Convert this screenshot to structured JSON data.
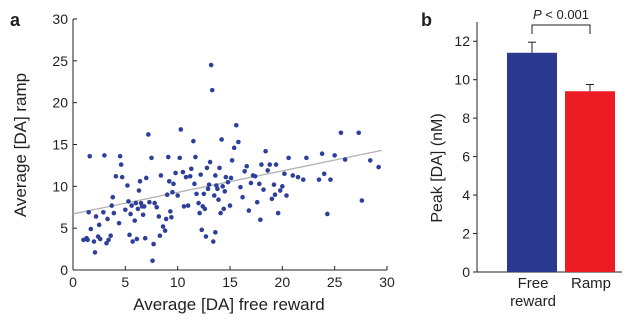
{
  "colors": {
    "scatter": "#2e3f9a",
    "fit_line": "#b3b3b3",
    "bar_free": "#2b3990",
    "bar_ramp": "#ed1c24",
    "axis": "#231f20"
  },
  "chart_data": [
    {
      "panel": "a",
      "type": "scatter",
      "xlabel": "Average [DA] free reward",
      "ylabel": "Average [DA] ramp",
      "xlim": [
        0,
        30
      ],
      "ylim": [
        0,
        30
      ],
      "xticks": [
        0,
        5,
        10,
        15,
        20,
        25,
        30
      ],
      "yticks": [
        0,
        5,
        10,
        15,
        20,
        25,
        30
      ],
      "fit_line": {
        "x": [
          0,
          29.5
        ],
        "y": [
          6.7,
          14.3
        ]
      },
      "points": [
        [
          1.5,
          6.9
        ],
        [
          1.7,
          4.9
        ],
        [
          1.0,
          3.6
        ],
        [
          1.3,
          3.8
        ],
        [
          1.6,
          13.6
        ],
        [
          2.0,
          3.4
        ],
        [
          2.1,
          2.1
        ],
        [
          2.4,
          4.0
        ],
        [
          2.5,
          5.4
        ],
        [
          2.6,
          3.7
        ],
        [
          2.9,
          6.9
        ],
        [
          3.0,
          13.7
        ],
        [
          3.2,
          3.2
        ],
        [
          3.3,
          6.1
        ],
        [
          3.4,
          3.6
        ],
        [
          3.6,
          4.1
        ],
        [
          3.7,
          7.7
        ],
        [
          3.9,
          6.8
        ],
        [
          4.1,
          11.2
        ],
        [
          4.5,
          13.6
        ],
        [
          4.6,
          12.6
        ],
        [
          4.7,
          11.1
        ],
        [
          5.0,
          7.2
        ],
        [
          5.2,
          10.1
        ],
        [
          5.3,
          8.2
        ],
        [
          5.4,
          4.2
        ],
        [
          5.5,
          6.7
        ],
        [
          5.6,
          7.7
        ],
        [
          5.7,
          3.4
        ],
        [
          5.9,
          5.9
        ],
        [
          6.0,
          8.0
        ],
        [
          6.2,
          7.3
        ],
        [
          6.3,
          9.5
        ],
        [
          6.4,
          10.6
        ],
        [
          6.5,
          8.0
        ],
        [
          6.6,
          7.6
        ],
        [
          6.7,
          6.6
        ],
        [
          6.8,
          7.6
        ],
        [
          6.9,
          3.8
        ],
        [
          7.0,
          11.0
        ],
        [
          7.2,
          16.2
        ],
        [
          7.3,
          8.1
        ],
        [
          7.5,
          13.4
        ],
        [
          7.6,
          1.1
        ],
        [
          7.7,
          3.1
        ],
        [
          7.8,
          8.0
        ],
        [
          8.0,
          7.5
        ],
        [
          8.2,
          6.4
        ],
        [
          8.3,
          4.1
        ],
        [
          8.4,
          11.3
        ],
        [
          8.6,
          5.2
        ],
        [
          8.8,
          4.7
        ],
        [
          9.0,
          9.0
        ],
        [
          9.1,
          13.5
        ],
        [
          9.2,
          10.6
        ],
        [
          9.3,
          7.0
        ],
        [
          9.5,
          9.3
        ],
        [
          9.6,
          10.3
        ],
        [
          9.8,
          11.6
        ],
        [
          10.0,
          8.9
        ],
        [
          10.2,
          13.4
        ],
        [
          10.3,
          16.8
        ],
        [
          10.5,
          11.7
        ],
        [
          10.6,
          7.6
        ],
        [
          10.8,
          11.1
        ],
        [
          11.0,
          7.7
        ],
        [
          11.2,
          11.2
        ],
        [
          11.3,
          12.1
        ],
        [
          11.5,
          15.4
        ],
        [
          11.7,
          13.5
        ],
        [
          11.8,
          9.1
        ],
        [
          12.0,
          8.0
        ],
        [
          12.1,
          6.8
        ],
        [
          12.2,
          11.4
        ],
        [
          12.4,
          7.6
        ],
        [
          12.5,
          9.1
        ],
        [
          12.6,
          7.3
        ],
        [
          12.7,
          4.0
        ],
        [
          12.8,
          12.2
        ],
        [
          12.9,
          9.7
        ],
        [
          13.0,
          10.2
        ],
        [
          13.1,
          12.9
        ],
        [
          13.2,
          24.5
        ],
        [
          13.3,
          21.5
        ],
        [
          13.4,
          3.4
        ],
        [
          13.5,
          8.9
        ],
        [
          13.6,
          11.3
        ],
        [
          13.7,
          10.1
        ],
        [
          13.8,
          9.7
        ],
        [
          13.9,
          8.4
        ],
        [
          14.0,
          12.2
        ],
        [
          14.1,
          6.8
        ],
        [
          14.2,
          15.6
        ],
        [
          14.3,
          10.0
        ],
        [
          14.4,
          7.3
        ],
        [
          14.5,
          9.4
        ],
        [
          14.6,
          11.1
        ],
        [
          14.8,
          10.5
        ],
        [
          15.0,
          7.7
        ],
        [
          15.2,
          13.1
        ],
        [
          15.4,
          14.6
        ],
        [
          15.6,
          17.3
        ],
        [
          15.8,
          15.3
        ],
        [
          16.0,
          9.9
        ],
        [
          16.2,
          8.7
        ],
        [
          16.4,
          11.8
        ],
        [
          16.6,
          12.4
        ],
        [
          16.8,
          7.1
        ],
        [
          17.0,
          10.4
        ],
        [
          17.2,
          11.3
        ],
        [
          17.4,
          11.2
        ],
        [
          17.6,
          8.1
        ],
        [
          17.8,
          10.3
        ],
        [
          18.0,
          12.6
        ],
        [
          18.2,
          9.6
        ],
        [
          18.4,
          14.2
        ],
        [
          18.6,
          11.9
        ],
        [
          18.8,
          12.6
        ],
        [
          19.0,
          8.5
        ],
        [
          19.2,
          10.2
        ],
        [
          19.4,
          12.6
        ],
        [
          19.6,
          6.8
        ],
        [
          19.8,
          9.5
        ],
        [
          20.0,
          10.0
        ],
        [
          20.2,
          11.5
        ],
        [
          20.4,
          8.9
        ],
        [
          20.6,
          13.4
        ],
        [
          21.0,
          11.3
        ],
        [
          22.0,
          10.8
        ],
        [
          22.3,
          13.4
        ],
        [
          23.5,
          10.8
        ],
        [
          23.8,
          13.9
        ],
        [
          24.0,
          11.5
        ],
        [
          24.3,
          6.7
        ],
        [
          24.6,
          10.8
        ],
        [
          25.0,
          13.7
        ],
        [
          25.6,
          16.4
        ],
        [
          26.0,
          13.2
        ],
        [
          27.3,
          16.4
        ],
        [
          27.6,
          8.3
        ],
        [
          28.4,
          13.1
        ],
        [
          29.2,
          12.3
        ],
        [
          1.4,
          3.6
        ],
        [
          2.2,
          6.4
        ],
        [
          3.8,
          8.7
        ],
        [
          4.4,
          5.6
        ],
        [
          6.1,
          3.7
        ],
        [
          8.9,
          6.1
        ],
        [
          11.6,
          10.3
        ],
        [
          13.6,
          4.5
        ],
        [
          15.1,
          11.0
        ],
        [
          17.9,
          6.0
        ],
        [
          21.5,
          11.1
        ],
        [
          19.3,
          9.0
        ],
        [
          9.4,
          6.3
        ],
        [
          12.3,
          4.8
        ]
      ]
    },
    {
      "panel": "b",
      "type": "bar",
      "categories": [
        "Free\nreward",
        "Ramp"
      ],
      "values": [
        11.4,
        9.4
      ],
      "errors": [
        0.55,
        0.35
      ],
      "ylabel": "Peak [DA] (nM)",
      "ylim": [
        0,
        13
      ],
      "yticks": [
        0,
        2,
        4,
        6,
        8,
        10,
        12
      ],
      "significance": {
        "label": "P < 0.001",
        "p_italic": "P",
        "rest": " < 0.001"
      }
    }
  ],
  "panel_labels": {
    "a": "a",
    "b": "b"
  },
  "cat_lines": {
    "free_1": "Free",
    "free_2": "reward",
    "ramp": "Ramp"
  }
}
